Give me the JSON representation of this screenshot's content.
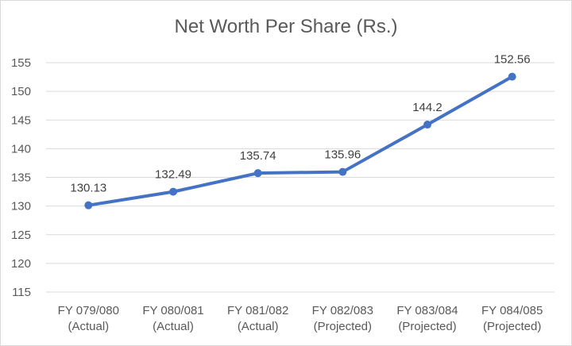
{
  "chart_data": {
    "type": "line",
    "title": "Net Worth Per Share (Rs.)",
    "categories": [
      [
        "FY 079/080",
        "(Actual)"
      ],
      [
        "FY 080/081",
        "(Actual)"
      ],
      [
        "FY 081/082",
        "(Actual)"
      ],
      [
        "FY 082/083",
        "(Projected)"
      ],
      [
        "FY 083/084",
        "(Projected)"
      ],
      [
        "FY 084/085",
        "(Projected)"
      ]
    ],
    "series": [
      {
        "values": [
          130.13,
          132.49,
          135.74,
          135.96,
          144.2,
          152.56
        ]
      }
    ],
    "data_labels": [
      "130.13",
      "132.49",
      "135.74",
      "135.96",
      "144.2",
      "152.56"
    ],
    "y_ticks": [
      115,
      120,
      125,
      130,
      135,
      140,
      145,
      150,
      155
    ],
    "ylim": [
      115,
      155
    ],
    "grid": true,
    "line_color": "#4472c4",
    "grid_color": "#d9d9d9"
  }
}
